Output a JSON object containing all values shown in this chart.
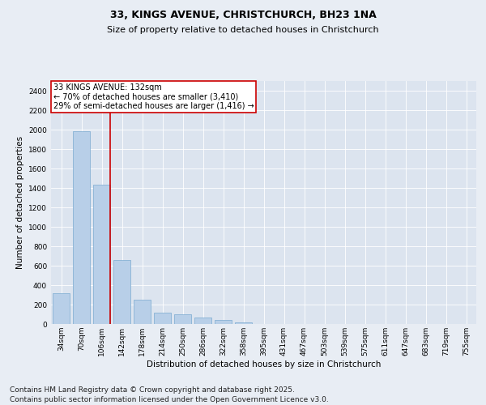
{
  "title_line1": "33, KINGS AVENUE, CHRISTCHURCH, BH23 1NA",
  "title_line2": "Size of property relative to detached houses in Christchurch",
  "xlabel": "Distribution of detached houses by size in Christchurch",
  "ylabel": "Number of detached properties",
  "categories": [
    "34sqm",
    "70sqm",
    "106sqm",
    "142sqm",
    "178sqm",
    "214sqm",
    "250sqm",
    "286sqm",
    "322sqm",
    "358sqm",
    "395sqm",
    "431sqm",
    "467sqm",
    "503sqm",
    "539sqm",
    "575sqm",
    "611sqm",
    "647sqm",
    "683sqm",
    "719sqm",
    "755sqm"
  ],
  "values": [
    320,
    1980,
    1430,
    660,
    250,
    120,
    100,
    70,
    40,
    20,
    0,
    0,
    0,
    0,
    0,
    0,
    0,
    0,
    0,
    0,
    0
  ],
  "bar_color": "#b8cfe8",
  "bar_edge_color": "#7aaad0",
  "vline_color": "#cc0000",
  "vline_x": 2.42,
  "annotation_text": "33 KINGS AVENUE: 132sqm\n← 70% of detached houses are smaller (3,410)\n29% of semi-detached houses are larger (1,416) →",
  "annotation_box_edgecolor": "#cc0000",
  "ylim": [
    0,
    2500
  ],
  "yticks": [
    0,
    200,
    400,
    600,
    800,
    1000,
    1200,
    1400,
    1600,
    1800,
    2000,
    2200,
    2400
  ],
  "bg_color": "#e8edf4",
  "plot_bg_color": "#dce4ef",
  "footer": "Contains HM Land Registry data © Crown copyright and database right 2025.\nContains public sector information licensed under the Open Government Licence v3.0.",
  "footer_fontsize": 6.5,
  "title1_fontsize": 9,
  "title2_fontsize": 8,
  "axis_label_fontsize": 7.5,
  "tick_fontsize": 6.5,
  "annotation_fontsize": 7
}
